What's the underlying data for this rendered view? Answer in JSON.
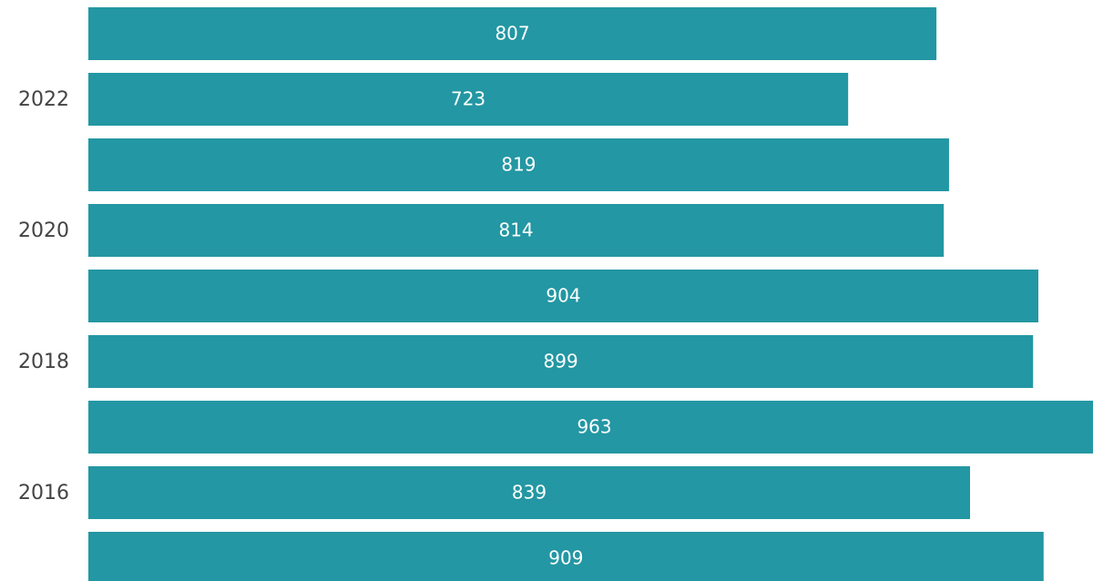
{
  "chart_data": {
    "type": "barh",
    "categories": [
      null,
      "2022",
      null,
      "2020",
      null,
      "2018",
      null,
      "2016",
      null
    ],
    "values": [
      807,
      723,
      819,
      814,
      904,
      899,
      963,
      839,
      909
    ],
    "color": "#2397a3",
    "xlim": [
      0,
      956
    ]
  }
}
